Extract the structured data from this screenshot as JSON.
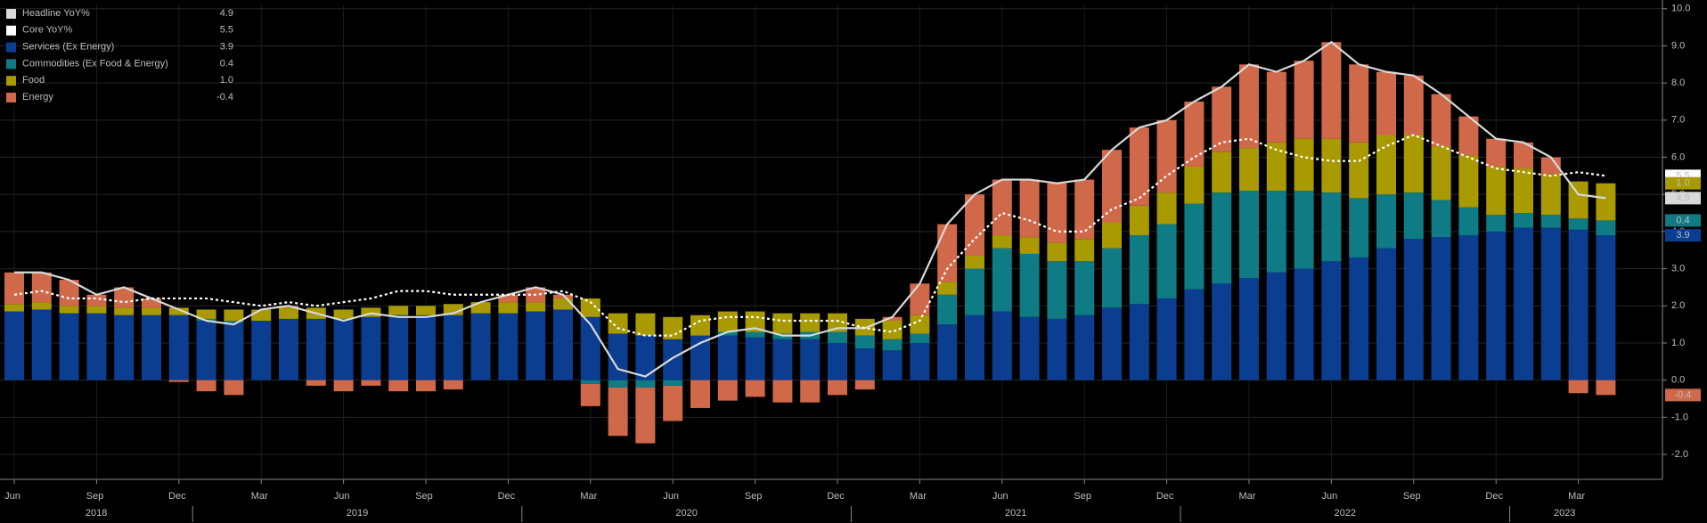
{
  "chart_data": {
    "type": "bar",
    "categories": [
      "Jun",
      null,
      null,
      "Sep",
      null,
      null,
      "Dec",
      null,
      null,
      "Mar",
      null,
      null,
      "Jun",
      null,
      null,
      "Sep",
      null,
      null,
      "Dec",
      null,
      null,
      "Mar",
      null,
      null,
      "Jun",
      null,
      null,
      "Sep",
      null,
      null,
      "Dec",
      null,
      null,
      "Mar",
      null,
      null,
      "Jun",
      null,
      null,
      "Sep",
      null,
      null,
      "Dec",
      null,
      null,
      "Mar",
      null,
      null,
      "Jun",
      null,
      null,
      "Sep",
      null,
      null,
      "Dec",
      null,
      null,
      "Mar",
      null
    ],
    "x_groups": [
      {
        "label": "2018",
        "count": 7
      },
      {
        "label": "2019",
        "count": 12
      },
      {
        "label": "2020",
        "count": 12
      },
      {
        "label": "2021",
        "count": 12
      },
      {
        "label": "2022",
        "count": 12
      },
      {
        "label": "2023",
        "count": 4
      }
    ],
    "ylim": [
      -2.67,
      10.09
    ],
    "yticks": [
      {
        "value": -2,
        "label": "-2.0"
      },
      {
        "value": -1,
        "label": "-1.0"
      },
      {
        "value": 0,
        "label": "0.0"
      },
      {
        "value": 1,
        "label": "1.0"
      },
      {
        "value": 2,
        "label": "2.0"
      },
      {
        "value": 3,
        "label": "3.0"
      },
      {
        "value": 4,
        "label": "4.0"
      },
      {
        "value": 5,
        "label": "5.0"
      },
      {
        "value": 6,
        "label": "6.0"
      },
      {
        "value": 7,
        "label": "7.0"
      },
      {
        "value": 8,
        "label": "8.0"
      },
      {
        "value": 9,
        "label": "9.0"
      },
      {
        "value": 10,
        "label": "10.0"
      }
    ],
    "grid": true,
    "legend": "top-left",
    "series": [
      {
        "name": "Headline YoY%",
        "kind": "line",
        "color": "#d9d9d9",
        "tag_text": "#000000",
        "legend_value": "4.9",
        "values": [
          2.9,
          2.9,
          2.7,
          2.3,
          2.5,
          2.2,
          1.9,
          1.6,
          1.5,
          1.9,
          2.0,
          1.8,
          1.6,
          1.8,
          1.7,
          1.7,
          1.8,
          2.1,
          2.3,
          2.5,
          2.3,
          1.5,
          0.3,
          0.1,
          0.6,
          1.0,
          1.3,
          1.4,
          1.2,
          1.2,
          1.4,
          1.4,
          1.7,
          2.6,
          4.2,
          5.0,
          5.4,
          5.4,
          5.3,
          5.4,
          6.2,
          6.8,
          7.0,
          7.5,
          7.9,
          8.5,
          8.3,
          8.6,
          9.1,
          8.5,
          8.3,
          8.2,
          7.7,
          7.1,
          6.5,
          6.4,
          6.0,
          5.0,
          4.9
        ]
      },
      {
        "name": "Core YoY%",
        "kind": "line",
        "dashed": true,
        "color": "#ffffff",
        "tag_text": "#000000",
        "legend_value": "5.5",
        "values": [
          2.3,
          2.4,
          2.2,
          2.2,
          2.1,
          2.2,
          2.2,
          2.2,
          2.1,
          2.0,
          2.1,
          2.0,
          2.1,
          2.2,
          2.4,
          2.4,
          2.3,
          2.3,
          2.3,
          2.3,
          2.4,
          2.1,
          1.4,
          1.2,
          1.2,
          1.6,
          1.7,
          1.7,
          1.6,
          1.6,
          1.6,
          1.4,
          1.3,
          1.6,
          3.0,
          3.8,
          4.5,
          4.3,
          4.0,
          4.0,
          4.6,
          4.9,
          5.5,
          6.0,
          6.4,
          6.5,
          6.2,
          6.0,
          5.9,
          5.9,
          6.3,
          6.6,
          6.3,
          6.0,
          5.7,
          5.6,
          5.5,
          5.6,
          5.5
        ]
      },
      {
        "name": "Services (Ex Energy)",
        "kind": "bar",
        "color": "#0b3d91",
        "tag_text": "#ffffff",
        "legend_value": "3.9",
        "values": [
          1.85,
          1.9,
          1.8,
          1.8,
          1.75,
          1.75,
          1.75,
          1.6,
          1.55,
          1.6,
          1.65,
          1.65,
          1.65,
          1.7,
          1.75,
          1.75,
          1.75,
          1.8,
          1.8,
          1.85,
          1.9,
          1.7,
          1.25,
          1.2,
          1.1,
          1.2,
          1.2,
          1.15,
          1.1,
          1.1,
          1.0,
          0.85,
          0.8,
          1.0,
          1.5,
          1.75,
          1.85,
          1.7,
          1.65,
          1.75,
          1.95,
          2.05,
          2.2,
          2.45,
          2.6,
          2.75,
          2.9,
          3.0,
          3.2,
          3.3,
          3.55,
          3.8,
          3.85,
          3.9,
          4.0,
          4.1,
          4.1,
          4.05,
          3.9
        ]
      },
      {
        "name": "Commodities (Ex Food & Energy)",
        "kind": "bar",
        "color": "#0f7b85",
        "tag_text": "#ffffff",
        "legend_value": "0.4",
        "values": [
          0,
          0,
          0,
          0,
          0,
          0,
          0,
          0.05,
          0.05,
          0,
          0,
          0,
          0,
          0,
          0,
          0,
          0,
          0,
          0,
          0,
          0,
          -0.1,
          -0.2,
          -0.2,
          -0.15,
          0,
          0.1,
          0.15,
          0.15,
          0.2,
          0.3,
          0.35,
          0.3,
          0.25,
          0.8,
          1.25,
          1.7,
          1.7,
          1.55,
          1.45,
          1.6,
          1.85,
          2.0,
          2.3,
          2.45,
          2.35,
          2.2,
          2.1,
          1.85,
          1.6,
          1.45,
          1.25,
          1.0,
          0.75,
          0.45,
          0.4,
          0.35,
          0.3,
          0.4
        ]
      },
      {
        "name": "Food",
        "kind": "bar",
        "color": "#a89a00",
        "tag_text": "#000000",
        "legend_value": "1.0",
        "values": [
          0.2,
          0.2,
          0.2,
          0.2,
          0.2,
          0.2,
          0.2,
          0.25,
          0.3,
          0.3,
          0.3,
          0.3,
          0.25,
          0.25,
          0.25,
          0.25,
          0.3,
          0.3,
          0.3,
          0.25,
          0.3,
          0.5,
          0.55,
          0.6,
          0.6,
          0.55,
          0.55,
          0.55,
          0.55,
          0.5,
          0.5,
          0.45,
          0.5,
          0.5,
          0.35,
          0.35,
          0.35,
          0.45,
          0.5,
          0.6,
          0.7,
          0.8,
          0.85,
          1.0,
          1.1,
          1.15,
          1.3,
          1.4,
          1.45,
          1.5,
          1.6,
          1.55,
          1.45,
          1.4,
          1.3,
          1.2,
          1.1,
          1.0,
          1.0
        ]
      },
      {
        "name": "Energy",
        "kind": "bar",
        "color": "#d0684a",
        "tag_text": "#000000",
        "legend_value": "-0.4",
        "values": [
          0.85,
          0.8,
          0.7,
          0.3,
          0.55,
          0.25,
          -0.05,
          -0.3,
          -0.4,
          0,
          0.05,
          -0.15,
          -0.3,
          -0.15,
          -0.3,
          -0.3,
          -0.25,
          0,
          0.2,
          0.4,
          0.1,
          -0.6,
          -1.3,
          -1.5,
          -0.95,
          -0.75,
          -0.55,
          -0.45,
          -0.6,
          -0.6,
          -0.4,
          -0.25,
          0.1,
          0.85,
          1.55,
          1.65,
          1.5,
          1.55,
          1.6,
          1.6,
          1.95,
          2.1,
          1.95,
          1.75,
          1.75,
          2.25,
          1.9,
          2.1,
          2.6,
          2.1,
          1.7,
          1.6,
          1.4,
          1.05,
          0.75,
          0.7,
          0.45,
          -0.35,
          -0.4
        ]
      }
    ]
  }
}
